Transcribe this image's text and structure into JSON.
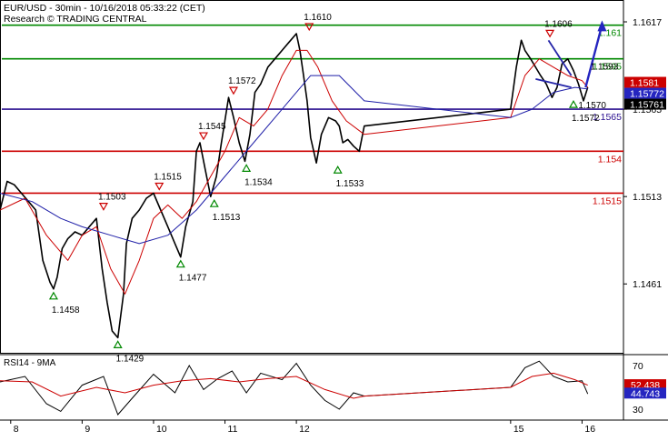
{
  "header": {
    "line1": "EUR/USD - 30min - 10/16/2018 05:33:22 (CET)",
    "line2": "Research © TRADING CENTRAL"
  },
  "chart_data": {
    "type": "line",
    "title": "EUR/USD - 30min - 10/16/2018 05:33:22 (CET)",
    "subtitle": "Research © TRADING CENTRAL",
    "ylim": [
      1.142,
      1.163
    ],
    "y_ticks": [
      1.1461,
      1.1513,
      1.1565,
      1.1617
    ],
    "x_ticks": [
      {
        "label": "8",
        "day": 8
      },
      {
        "label": "9",
        "day": 9
      },
      {
        "label": "10",
        "day": 10
      },
      {
        "label": "11",
        "day": 11
      },
      {
        "label": "12",
        "day": 12
      },
      {
        "label": "15",
        "day": 15
      },
      {
        "label": "16",
        "day": 16
      }
    ],
    "xlim": [
      7.85,
      16.58
    ],
    "colors": {
      "price": "#000000",
      "ma_fast": "#cc0000",
      "ma_slow": "#1f1fa8",
      "support": "#cc0000",
      "resistance": "#008800",
      "pivot": "#2a0f8f"
    },
    "series": [
      {
        "role": "price",
        "x": [
          7.85,
          7.95,
          8.05,
          8.15,
          8.25,
          8.35,
          8.45,
          8.55,
          8.6,
          8.65,
          8.72,
          8.8,
          8.9,
          9.0,
          9.1,
          9.2,
          9.28,
          9.35,
          9.42,
          9.5,
          9.58,
          9.62,
          9.7,
          9.8,
          9.9,
          10.0,
          10.1,
          10.2,
          10.3,
          10.38,
          10.45,
          10.55,
          10.6,
          10.65,
          10.72,
          10.8,
          10.88,
          10.95,
          11.05,
          11.12,
          11.2,
          11.28,
          11.35,
          11.42,
          11.5,
          11.6,
          11.7,
          11.8,
          11.9,
          12.0,
          12.05,
          12.1,
          12.15,
          12.2,
          12.28,
          12.35,
          12.45,
          12.55,
          12.6,
          12.65,
          12.72,
          12.8,
          12.88,
          12.95,
          15.0,
          15.08,
          15.15,
          15.2,
          15.28,
          15.35,
          15.42,
          15.5,
          15.58,
          15.65,
          15.72,
          15.8,
          15.88,
          15.95,
          16.02,
          16.08
        ],
        "y": [
          1.1505,
          1.1522,
          1.152,
          1.1515,
          1.151,
          1.1505,
          1.1475,
          1.1462,
          1.1458,
          1.1465,
          1.1482,
          1.1488,
          1.1492,
          1.149,
          1.1495,
          1.15,
          1.147,
          1.145,
          1.1433,
          1.1429,
          1.1455,
          1.1485,
          1.15,
          1.1505,
          1.1512,
          1.1515,
          1.1505,
          1.1495,
          1.1485,
          1.1477,
          1.1495,
          1.151,
          1.154,
          1.1545,
          1.153,
          1.1513,
          1.1525,
          1.1545,
          1.1572,
          1.156,
          1.1545,
          1.1534,
          1.155,
          1.1575,
          1.158,
          1.159,
          1.1595,
          1.16,
          1.1605,
          1.161,
          1.16,
          1.1585,
          1.157,
          1.1548,
          1.1533,
          1.155,
          1.156,
          1.1558,
          1.1555,
          1.1545,
          1.1547,
          1.1543,
          1.154,
          1.1555,
          1.1565,
          1.159,
          1.1606,
          1.16,
          1.1595,
          1.159,
          1.1585,
          1.158,
          1.1572,
          1.1578,
          1.1592,
          1.1595,
          1.1588,
          1.158,
          1.157,
          1.1578
        ]
      },
      {
        "role": "ma_fast",
        "x": [
          7.85,
          8.2,
          8.5,
          8.8,
          9.0,
          9.2,
          9.4,
          9.6,
          9.8,
          10.0,
          10.2,
          10.4,
          10.6,
          10.8,
          11.0,
          11.2,
          11.4,
          11.6,
          11.8,
          12.0,
          12.15,
          12.3,
          12.5,
          12.7,
          12.95,
          15.0,
          15.2,
          15.4,
          15.6,
          15.8,
          16.0,
          16.08
        ],
        "y": [
          1.1505,
          1.1512,
          1.149,
          1.1475,
          1.149,
          1.1495,
          1.147,
          1.1455,
          1.1475,
          1.15,
          1.1508,
          1.15,
          1.151,
          1.1525,
          1.154,
          1.156,
          1.1555,
          1.1565,
          1.1585,
          1.16,
          1.16,
          1.159,
          1.157,
          1.1558,
          1.155,
          1.156,
          1.1585,
          1.1595,
          1.159,
          1.1585,
          1.1582,
          1.1578
        ]
      },
      {
        "role": "ma_slow",
        "x": [
          7.85,
          8.3,
          8.7,
          9.0,
          9.4,
          9.8,
          10.2,
          10.6,
          11.0,
          11.4,
          11.8,
          12.2,
          12.6,
          12.95,
          15.0,
          15.3,
          15.6,
          15.9,
          16.08
        ],
        "y": [
          1.1515,
          1.151,
          1.15,
          1.1495,
          1.149,
          1.1485,
          1.149,
          1.1505,
          1.1525,
          1.1545,
          1.1565,
          1.1585,
          1.1585,
          1.157,
          1.156,
          1.1565,
          1.1575,
          1.1578,
          1.1577
        ]
      }
    ],
    "levels": [
      {
        "name": "1.161",
        "value": 1.1615,
        "color": "#008800"
      },
      {
        "name": "1.1595",
        "value": 1.1595,
        "color": "#008800"
      },
      {
        "name": "1.1565",
        "value": 1.1565,
        "color": "#2a0f8f"
      },
      {
        "name": "1.154",
        "value": 1.154,
        "color": "#cc0000"
      },
      {
        "name": "1.1515",
        "value": 1.1515,
        "color": "#cc0000"
      }
    ],
    "price_tags": [
      {
        "label": "1.1581",
        "value": 1.1581,
        "color": "#ffffff",
        "bg": "#cc0000"
      },
      {
        "label": "1.15772",
        "value": 1.15772,
        "color": "#ffffff",
        "bg": "#2525c0"
      },
      {
        "label": "1.15761",
        "value": 1.15761,
        "color": "#ffffff",
        "bg": "#000000"
      }
    ],
    "annotations": [
      {
        "label": "1.1458",
        "x": 8.6,
        "y": 1.1458,
        "kind": "low"
      },
      {
        "label": "1.1503",
        "x": 9.3,
        "y": 1.1503,
        "kind": "high"
      },
      {
        "label": "1.1429",
        "x": 9.5,
        "y": 1.1429,
        "kind": "low"
      },
      {
        "label": "1.1515",
        "x": 10.08,
        "y": 1.1515,
        "kind": "high"
      },
      {
        "label": "1.1477",
        "x": 10.38,
        "y": 1.1477,
        "kind": "low"
      },
      {
        "label": "1.1545",
        "x": 10.7,
        "y": 1.1545,
        "kind": "high"
      },
      {
        "label": "1.1513",
        "x": 10.85,
        "y": 1.1513,
        "kind": "low"
      },
      {
        "label": "1.1572",
        "x": 11.12,
        "y": 1.1572,
        "kind": "high"
      },
      {
        "label": "1.1534",
        "x": 11.3,
        "y": 1.1534,
        "kind": "low"
      },
      {
        "label": "1.1610",
        "x": 12.18,
        "y": 1.161,
        "kind": "high"
      },
      {
        "label": "1.1533",
        "x": 12.58,
        "y": 1.1533,
        "kind": "low"
      },
      {
        "label": "1.1606",
        "x": 15.55,
        "y": 1.1606,
        "kind": "high"
      },
      {
        "label": "1.1572",
        "x": 15.88,
        "y": 1.1572,
        "kind": "low"
      },
      {
        "label": "1.1570",
        "x": 16.05,
        "y": 1.157,
        "kind": "plain"
      },
      {
        "label": "1.1593",
        "x": 16.22,
        "y": 1.1593,
        "kind": "plain"
      }
    ],
    "pattern_lines": [
      {
        "x1": 15.53,
        "y1": 1.1606,
        "x2": 15.85,
        "y2": 1.1585
      },
      {
        "x1": 15.35,
        "y1": 1.1583,
        "x2": 15.85,
        "y2": 1.1578
      }
    ],
    "arrow": {
      "x1": 16.05,
      "y1": 1.1578,
      "x2": 16.28,
      "y2": 1.1613
    },
    "rsi": {
      "label": "RSI14 - 9MA",
      "ylim": [
        20,
        80
      ],
      "ticks": [
        70,
        30
      ],
      "tags": [
        {
          "label": "52.438",
          "value": 52.438,
          "bg": "#cc0000"
        },
        {
          "label": "44.743",
          "value": 44.743,
          "bg": "#2525c0"
        }
      ],
      "rsi_x": [
        7.85,
        8.2,
        8.5,
        8.7,
        9.0,
        9.3,
        9.5,
        9.7,
        10.0,
        10.3,
        10.5,
        10.7,
        10.9,
        11.1,
        11.3,
        11.5,
        11.8,
        12.0,
        12.2,
        12.4,
        12.6,
        12.8,
        12.95,
        15.0,
        15.2,
        15.4,
        15.6,
        15.8,
        16.0,
        16.08
      ],
      "rsi_y": [
        55,
        60,
        35,
        28,
        52,
        60,
        25,
        40,
        62,
        45,
        70,
        48,
        58,
        65,
        45,
        63,
        57,
        72,
        52,
        38,
        30,
        45,
        42,
        50,
        68,
        74,
        60,
        55,
        56,
        44
      ],
      "ma_x": [
        7.85,
        8.3,
        8.7,
        9.2,
        9.6,
        10.0,
        10.4,
        10.8,
        11.2,
        11.6,
        12.0,
        12.4,
        12.8,
        12.95,
        15.0,
        15.3,
        15.6,
        15.9,
        16.08
      ],
      "ma_y": [
        56,
        55,
        42,
        50,
        45,
        52,
        56,
        58,
        55,
        58,
        60,
        48,
        40,
        42,
        50,
        60,
        63,
        57,
        52
      ]
    }
  }
}
